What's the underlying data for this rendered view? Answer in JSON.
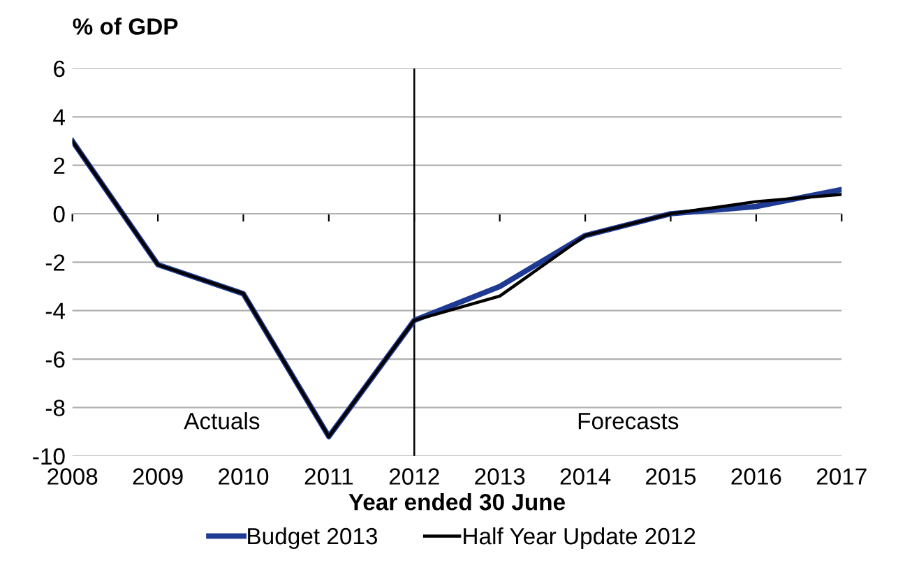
{
  "chart_data": {
    "type": "line",
    "ylabel": "% of GDP",
    "xlabel": "Year ended 30 June",
    "x": [
      2008,
      2009,
      2010,
      2011,
      2012,
      2013,
      2014,
      2015,
      2016,
      2017
    ],
    "series": [
      {
        "name": "Budget 2013",
        "color": "#1f3a93",
        "values": [
          3.0,
          -2.1,
          -3.3,
          -9.2,
          -4.4,
          -3.0,
          -0.9,
          0.0,
          0.3,
          1.0
        ]
      },
      {
        "name": "Half Year Update 2012",
        "color": "#000000",
        "values": [
          3.0,
          -2.1,
          -3.3,
          -9.2,
          -4.4,
          -3.4,
          -0.9,
          0.0,
          0.5,
          0.8
        ]
      }
    ],
    "xlim": [
      2008,
      2017
    ],
    "xticks": [
      2008,
      2009,
      2010,
      2011,
      2012,
      2013,
      2014,
      2015,
      2016,
      2017
    ],
    "ylim": [
      -10,
      6
    ],
    "yticks": [
      -10,
      -8,
      -6,
      -4,
      -2,
      0,
      2,
      4,
      6
    ],
    "ref_lines": [
      {
        "axis": "x",
        "value": 2012,
        "color": "#000000"
      }
    ],
    "annotations": [
      "Actuals",
      "Forecasts"
    ],
    "grid": "y",
    "legend": "bottom",
    "marker": "none",
    "line_style": "solid"
  }
}
